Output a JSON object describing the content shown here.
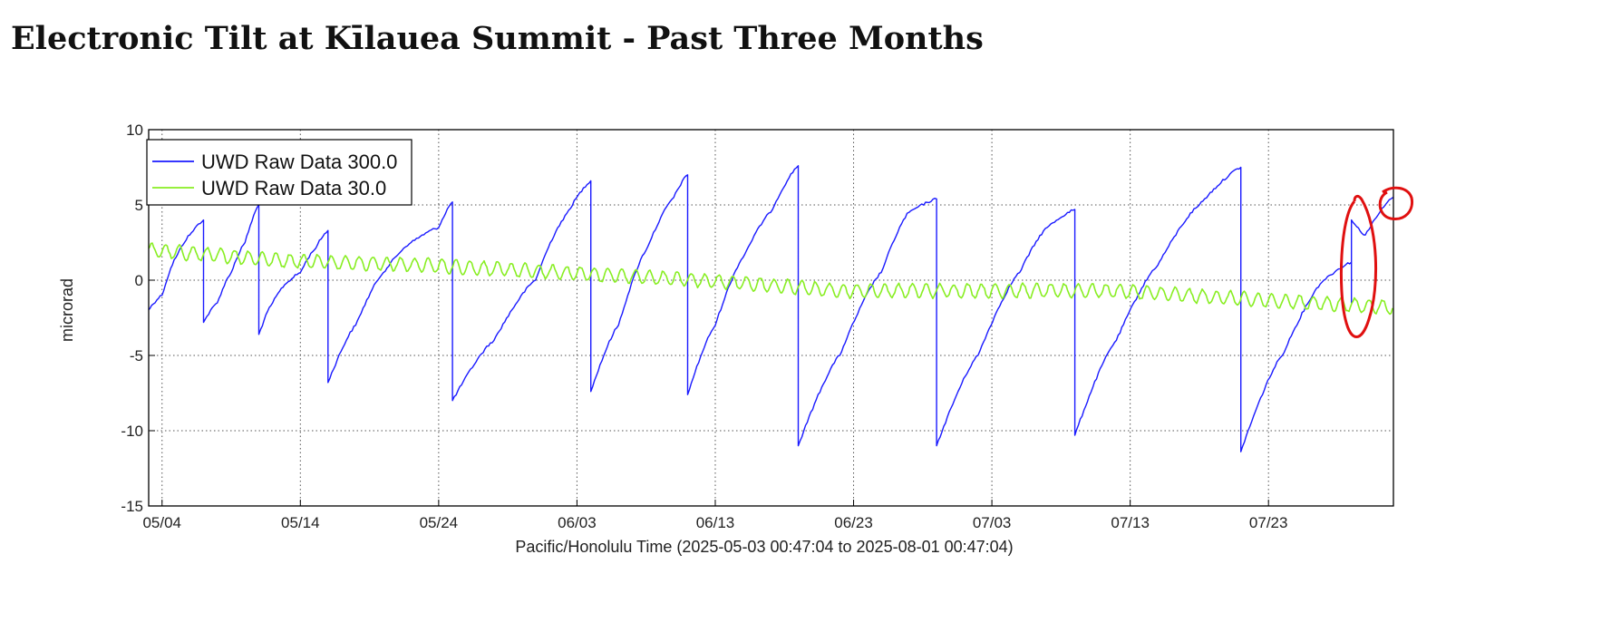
{
  "page": {
    "title": "Electronic Tilt at Kīlauea Summit - Past Three Months"
  },
  "colors": {
    "series_blue": "#1a1aff",
    "series_green": "#88ee22",
    "annotation": "#e01010",
    "grid": "#555555"
  },
  "chart_data": {
    "type": "line",
    "title": "",
    "xlabel": "Pacific/Honolulu Time (2025-05-03 00:47:04 to 2025-08-01 00:47:04)",
    "ylabel": "microrad",
    "xlim": [
      "2025-05-03",
      "2025-08-01"
    ],
    "ylim": [
      -15,
      10
    ],
    "x_ticks": [
      "05/04",
      "05/14",
      "05/24",
      "06/03",
      "06/13",
      "06/23",
      "07/03",
      "07/13",
      "07/23"
    ],
    "y_ticks": [
      10,
      5,
      0,
      -5,
      -10,
      -15
    ],
    "grid": true,
    "legend_position": "top-left",
    "series": [
      {
        "name": "UWD Raw Data 300.0",
        "color": "#1a1aff",
        "points": [
          [
            "2025-05-03",
            -2
          ],
          [
            "2025-05-04",
            -1
          ],
          [
            "2025-05-05",
            1.5
          ],
          [
            "2025-05-06",
            3
          ],
          [
            "2025-05-07",
            4
          ],
          [
            "2025-05-07",
            -2.8
          ],
          [
            "2025-05-08",
            -1.5
          ],
          [
            "2025-05-09",
            0.5
          ],
          [
            "2025-05-10",
            2.5
          ],
          [
            "2025-05-11",
            5
          ],
          [
            "2025-05-11",
            -3.6
          ],
          [
            "2025-05-12",
            -1.5
          ],
          [
            "2025-05-13",
            -0.2
          ],
          [
            "2025-05-14",
            0.5
          ],
          [
            "2025-05-15",
            2
          ],
          [
            "2025-05-16",
            3.3
          ],
          [
            "2025-05-16",
            -6.8
          ],
          [
            "2025-05-18",
            -3
          ],
          [
            "2025-05-20",
            0.5
          ],
          [
            "2025-05-22",
            2.5
          ],
          [
            "2025-05-24",
            3.5
          ],
          [
            "2025-05-25",
            5.2
          ],
          [
            "2025-05-25",
            -8
          ],
          [
            "2025-05-28",
            -4
          ],
          [
            "2025-05-31",
            0
          ],
          [
            "2025-06-02",
            4
          ],
          [
            "2025-06-04",
            6.6
          ],
          [
            "2025-06-04",
            -7.4
          ],
          [
            "2025-06-06",
            -3
          ],
          [
            "2025-06-08",
            2
          ],
          [
            "2025-06-10",
            5.5
          ],
          [
            "2025-06-11",
            7
          ],
          [
            "2025-06-11",
            -7.6
          ],
          [
            "2025-06-13",
            -3
          ],
          [
            "2025-06-15",
            1.5
          ],
          [
            "2025-06-17",
            4.5
          ],
          [
            "2025-06-19",
            7.6
          ],
          [
            "2025-06-19",
            -11
          ],
          [
            "2025-06-22",
            -5
          ],
          [
            "2025-06-25",
            0.5
          ],
          [
            "2025-06-27",
            4.5
          ],
          [
            "2025-06-29",
            5.4
          ],
          [
            "2025-06-29",
            -11
          ],
          [
            "2025-07-02",
            -5
          ],
          [
            "2025-07-05",
            0.5
          ],
          [
            "2025-07-07",
            3.5
          ],
          [
            "2025-07-09",
            4.7
          ],
          [
            "2025-07-09",
            -10.3
          ],
          [
            "2025-07-12",
            -4
          ],
          [
            "2025-07-15",
            1
          ],
          [
            "2025-07-18",
            5
          ],
          [
            "2025-07-21",
            7.5
          ],
          [
            "2025-07-21",
            -11.4
          ],
          [
            "2025-07-24",
            -5
          ],
          [
            "2025-07-27",
            0
          ],
          [
            "2025-07-29",
            1.2
          ],
          [
            "2025-07-29",
            -1.5
          ],
          [
            "2025-07-29",
            4
          ],
          [
            "2025-07-30",
            3
          ],
          [
            "2025-08-01",
            5.5
          ]
        ]
      },
      {
        "name": "UWD Raw Data 30.0",
        "color": "#88ee22",
        "points": [
          [
            "2025-05-03",
            2
          ],
          [
            "2025-05-13",
            1.3
          ],
          [
            "2025-05-23",
            1
          ],
          [
            "2025-06-02",
            0.5
          ],
          [
            "2025-06-12",
            0
          ],
          [
            "2025-06-22",
            -0.7
          ],
          [
            "2025-07-02",
            -0.7
          ],
          [
            "2025-07-12",
            -0.7
          ],
          [
            "2025-07-22",
            -1.3
          ],
          [
            "2025-08-01",
            -1.8
          ]
        ]
      }
    ]
  }
}
